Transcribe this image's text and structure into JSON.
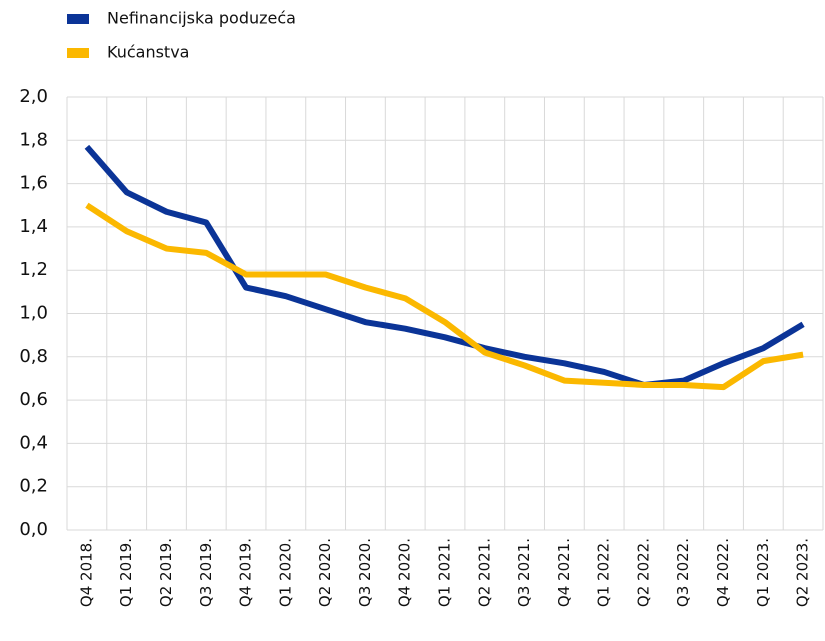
{
  "chart_data": {
    "type": "line",
    "categories": [
      "Q4 2018.",
      "Q1 2019.",
      "Q2 2019.",
      "Q3 2019.",
      "Q4 2019.",
      "Q1 2020.",
      "Q2 2020.",
      "Q3 2020.",
      "Q4 2020.",
      "Q1 2021.",
      "Q2 2021.",
      "Q3 2021.",
      "Q4 2021.",
      "Q1 2022.",
      "Q2 2022.",
      "Q3 2022.",
      "Q4 2022.",
      "Q1 2023.",
      "Q2 2023."
    ],
    "series": [
      {
        "name": "Nefinancijska poduzeća",
        "color": "#0b3497",
        "values": [
          1.77,
          1.56,
          1.47,
          1.42,
          1.12,
          1.08,
          1.02,
          0.96,
          0.93,
          0.89,
          0.84,
          0.8,
          0.77,
          0.73,
          0.67,
          0.69,
          0.77,
          0.84,
          0.95
        ]
      },
      {
        "name": "Kućanstva",
        "color": "#fbb800",
        "values": [
          1.5,
          1.38,
          1.3,
          1.28,
          1.18,
          1.18,
          1.18,
          1.12,
          1.07,
          0.96,
          0.82,
          0.76,
          0.69,
          0.68,
          0.67,
          0.67,
          0.66,
          0.78,
          0.81
        ]
      }
    ],
    "ylim": [
      0,
      2
    ],
    "yticks": [
      {
        "value": 0,
        "label": "0,0"
      },
      {
        "value": 0.2,
        "label": "0,2"
      },
      {
        "value": 0.4,
        "label": "0,4"
      },
      {
        "value": 0.6,
        "label": "0,6"
      },
      {
        "value": 0.8,
        "label": "0,8"
      },
      {
        "value": 1.0,
        "label": "1,0"
      },
      {
        "value": 1.2,
        "label": "1,2"
      },
      {
        "value": 1.4,
        "label": "1,4"
      },
      {
        "value": 1.6,
        "label": "1,6"
      },
      {
        "value": 1.8,
        "label": "1,8"
      },
      {
        "value": 2.0,
        "label": "2,0"
      }
    ],
    "grid": true,
    "legend": "top-left"
  }
}
